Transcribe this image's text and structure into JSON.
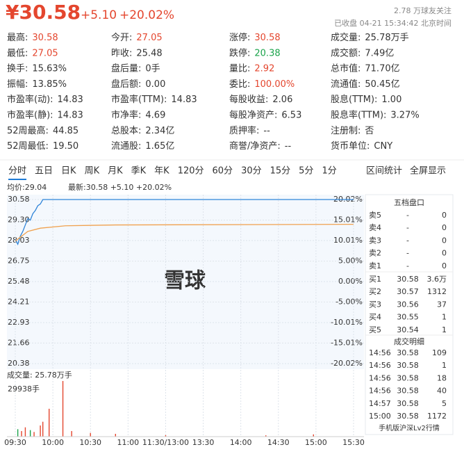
{
  "header": {
    "price": "¥30.58",
    "change": "+5.10",
    "pct": "+20.02%",
    "followers": "2.78 万球友关注",
    "status": "已收盘 04-21 15:34:42 北京时间"
  },
  "stats": [
    [
      {
        "label": "最高:",
        "value": "30.58",
        "color": "#e4462e"
      },
      {
        "label": "今开:",
        "value": "27.05",
        "color": "#e4462e"
      },
      {
        "label": "涨停:",
        "value": "30.58",
        "color": "#e4462e"
      },
      {
        "label": "成交量:",
        "value": "25.78万手",
        "color": "#333"
      }
    ],
    [
      {
        "label": "最低:",
        "value": "27.05",
        "color": "#e4462e"
      },
      {
        "label": "昨收:",
        "value": "25.48",
        "color": "#333"
      },
      {
        "label": "跌停:",
        "value": "20.38",
        "color": "#1aa34a"
      },
      {
        "label": "成交额:",
        "value": "7.49亿",
        "color": "#333"
      }
    ],
    [
      {
        "label": "换手:",
        "value": "15.63%",
        "color": "#333"
      },
      {
        "label": "盘后量:",
        "value": "0手",
        "color": "#333"
      },
      {
        "label": "量比:",
        "value": "2.92",
        "color": "#e4462e"
      },
      {
        "label": "总市值:",
        "value": "71.70亿",
        "color": "#333"
      }
    ],
    [
      {
        "label": "振幅:",
        "value": "13.85%",
        "color": "#333"
      },
      {
        "label": "盘后额:",
        "value": "0.00",
        "color": "#333"
      },
      {
        "label": "委比:",
        "value": "100.00%",
        "color": "#e4462e"
      },
      {
        "label": "流通值:",
        "value": "50.45亿",
        "color": "#333"
      }
    ],
    [
      {
        "label": "市盈率(动):",
        "value": "14.83",
        "color": "#333"
      },
      {
        "label": "市盈率(TTM):",
        "value": "14.83",
        "color": "#333"
      },
      {
        "label": "每股收益:",
        "value": "2.06",
        "color": "#333"
      },
      {
        "label": "股息(TTM):",
        "value": "1.00",
        "color": "#333"
      }
    ],
    [
      {
        "label": "市盈率(静):",
        "value": "14.83",
        "color": "#333"
      },
      {
        "label": "市净率:",
        "value": "4.69",
        "color": "#333"
      },
      {
        "label": "每股净资产:",
        "value": "6.53",
        "color": "#333"
      },
      {
        "label": "股息率(TTM):",
        "value": "3.27%",
        "color": "#333"
      }
    ],
    [
      {
        "label": "52周最高:",
        "value": "44.85",
        "color": "#333"
      },
      {
        "label": "总股本:",
        "value": "2.34亿",
        "color": "#333"
      },
      {
        "label": "质押率:",
        "value": "--",
        "color": "#333"
      },
      {
        "label": "注册制:",
        "value": "否",
        "color": "#333"
      }
    ],
    [
      {
        "label": "52周最低:",
        "value": "19.50",
        "color": "#333"
      },
      {
        "label": "流通股:",
        "value": "1.65亿",
        "color": "#333"
      },
      {
        "label": "商誉/净资产:",
        "value": "--",
        "color": "#333"
      },
      {
        "label": "货币单位:",
        "value": "CNY",
        "color": "#333"
      }
    ]
  ],
  "tabs": [
    "分时",
    "五日",
    "日K",
    "周K",
    "月K",
    "季K",
    "年K",
    "120分",
    "60分",
    "30分",
    "15分",
    "5分",
    "1分"
  ],
  "links": [
    "区间统计",
    "全屏显示"
  ],
  "chart": {
    "avg_label": "均价:29.04",
    "last_label": "最新:30.58 +5.10 +20.02%",
    "watermark": "雪球",
    "ylim": [
      20.38,
      30.58
    ],
    "yticks": [
      {
        "value": 30.58,
        "label": "30.58"
      },
      {
        "value": 29.3,
        "label": "29.30"
      },
      {
        "value": 28.03,
        "label": "28.03"
      },
      {
        "value": 26.75,
        "label": "26.75"
      },
      {
        "value": 25.48,
        "label": "25.48"
      },
      {
        "value": 24.21,
        "label": "24.21"
      },
      {
        "value": 22.93,
        "label": "22.93"
      },
      {
        "value": 21.66,
        "label": "21.66"
      },
      {
        "value": 20.38,
        "label": "20.38"
      }
    ],
    "pct_labels": [
      "20.02%",
      "15.01%",
      "10.01%",
      "5.00%",
      "0.00%",
      "-5.00%",
      "-10.01%",
      "-15.01%",
      "-20.02%"
    ],
    "pct_colors": [
      "#e4462e",
      "#e4462e",
      "#e4462e",
      "#e4462e",
      "#333",
      "#1aa34a",
      "#1aa34a",
      "#1aa34a",
      "#1aa34a"
    ],
    "xlim": [
      0,
      270
    ],
    "xticks": [
      {
        "value": 0,
        "label": "09:30"
      },
      {
        "value": 30,
        "label": "10:00"
      },
      {
        "value": 60,
        "label": "10:30"
      },
      {
        "value": 90,
        "label": "11:00"
      },
      {
        "value": 120,
        "label": "11:30/13:00"
      },
      {
        "value": 150,
        "label": "13:30"
      },
      {
        "value": 180,
        "label": "14:00"
      },
      {
        "value": 210,
        "label": "14:30"
      },
      {
        "value": 240,
        "label": "15:00"
      },
      {
        "value": 270,
        "label": "15:30"
      }
    ],
    "price": {
      "color": "#2f84d8",
      "x": [
        0,
        2,
        4,
        6,
        8,
        10,
        12,
        14,
        16,
        18,
        20,
        22,
        270
      ],
      "values": [
        28.1,
        27.8,
        28.3,
        28.6,
        29.0,
        29.4,
        29.3,
        29.7,
        29.9,
        30.2,
        30.3,
        30.58,
        30.58
      ]
    },
    "avg": {
      "color": "#f0a14e",
      "x": [
        0,
        10,
        20,
        40,
        80,
        270
      ],
      "values": [
        28.0,
        28.6,
        28.8,
        28.95,
        29.0,
        29.04
      ]
    },
    "volume_label": "成交量: 25.78万手",
    "volume_max_label": "29938手",
    "vlim": [
      0,
      29938
    ],
    "volume": {
      "x": [
        2,
        5,
        8,
        12,
        15,
        20,
        22,
        27,
        38,
        45,
        60,
        80,
        120,
        200,
        238
      ],
      "values": [
        4000,
        3000,
        5000,
        3500,
        2500,
        6000,
        8000,
        15000,
        29938,
        3000,
        2000,
        1500,
        800,
        700,
        1200
      ],
      "colors": [
        "#1aa34a",
        "#e4462e",
        "#e4462e",
        "#1aa34a",
        "#e4462e",
        "#e4462e",
        "#e4462e",
        "#e4462e",
        "#e4462e",
        "#e4462e",
        "#e4462e",
        "#e4462e",
        "#e4462e",
        "#e4462e",
        "#e4462e"
      ]
    }
  },
  "book": {
    "title": "五档盘口",
    "rows": [
      [
        "卖5",
        "-",
        "0"
      ],
      [
        "卖4",
        "-",
        "0"
      ],
      [
        "卖3",
        "-",
        "0"
      ],
      [
        "卖2",
        "-",
        "0"
      ],
      [
        "卖1",
        "-",
        "0"
      ],
      [
        "买1",
        "30.58",
        "3.6万"
      ],
      [
        "买2",
        "30.57",
        "1312"
      ],
      [
        "买3",
        "30.56",
        "37"
      ],
      [
        "买4",
        "30.55",
        "1"
      ],
      [
        "买5",
        "30.54",
        "1"
      ]
    ]
  },
  "trades": {
    "title": "成交明细",
    "rows": [
      [
        "14:56",
        "30.58",
        "109"
      ],
      [
        "14:56",
        "30.58",
        "1"
      ],
      [
        "14:56",
        "30.58",
        "18"
      ],
      [
        "14:56",
        "30.58",
        "40"
      ],
      [
        "14:57",
        "30.58",
        "5"
      ],
      [
        "15:00",
        "30.58",
        "1172"
      ]
    ],
    "colors": [
      "#1aa34a",
      "#e4462e",
      "#1aa34a",
      "#1aa34a",
      "#1aa34a",
      "#e4462e"
    ],
    "footer": "手机版沪深Lv2行情"
  }
}
